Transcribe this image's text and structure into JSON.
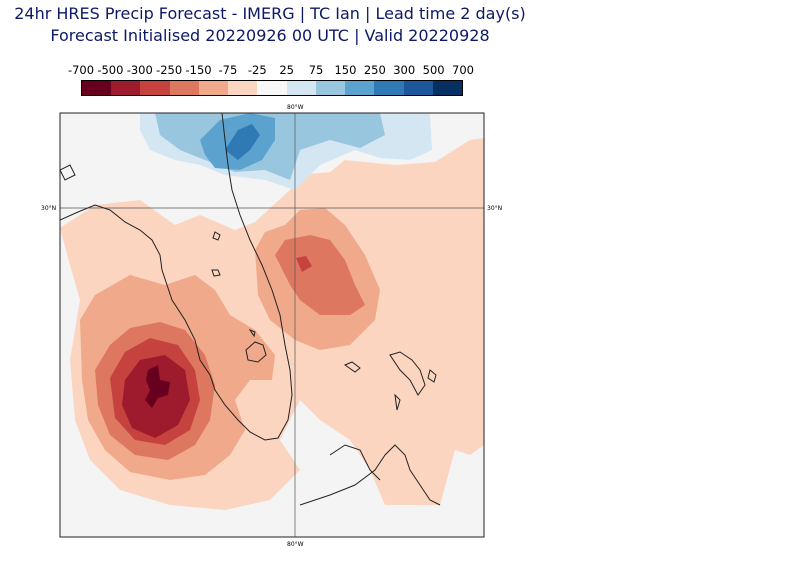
{
  "title_line1": "24hr HRES Precip Forecast - IMERG | TC Ian | Lead time 2 day(s)",
  "title_line2": "Forecast Initialised 20220926 00 UTC | Valid 20220928",
  "colorbar": {
    "labels": [
      "-700",
      "-500",
      "-300",
      "-250",
      "-150",
      "-75",
      "-25",
      "25",
      "75",
      "150",
      "250",
      "300",
      "500",
      "700"
    ],
    "colors": [
      "#67001f",
      "#9e1a2d",
      "#c5423e",
      "#de7760",
      "#f0a98a",
      "#fbd5c0",
      "#f7f7f7",
      "#d4e6f1",
      "#98c6df",
      "#5ba2cf",
      "#2f79b5",
      "#1c579b",
      "#053061"
    ]
  },
  "map": {
    "lat_label": "30°N",
    "lon_label": "80°W",
    "background": "#f4f4f4"
  }
}
